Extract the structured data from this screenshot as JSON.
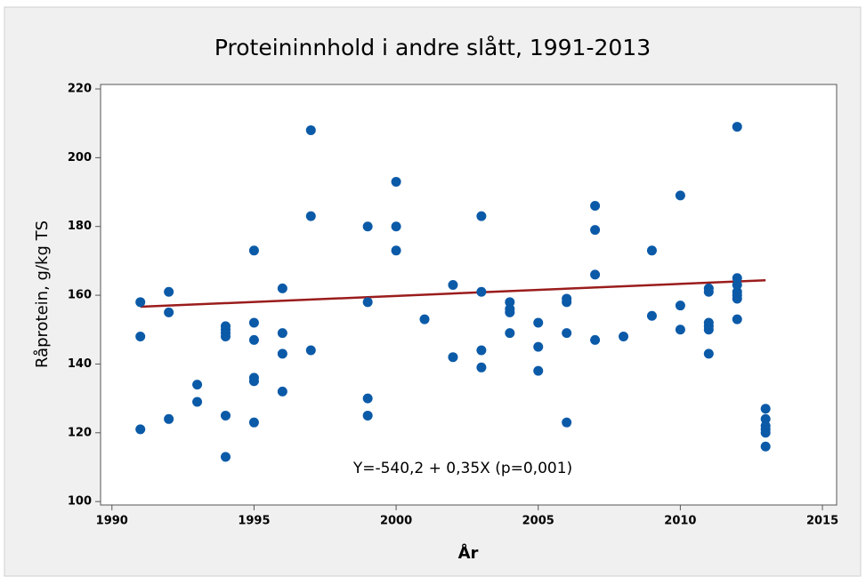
{
  "chart_data": {
    "type": "scatter",
    "title": "Proteininnhold i andre slått, 1991-2013",
    "x_label": "År",
    "y_label": "Råprotein, g/kg TS",
    "annotation": "Y=-540,2 + 0,35X (p=0,001)",
    "fit": {
      "intercept": -540.2,
      "slope": 0.35,
      "color": "#9b1c1c"
    },
    "series": [
      {
        "color": "#0b5aa8",
        "x": [
          1991,
          1991,
          1991,
          1992,
          1992,
          1992,
          1993,
          1993,
          1994,
          1994,
          1994,
          1994,
          1994,
          1994,
          1995,
          1995,
          1995,
          1995,
          1995,
          1995,
          1996,
          1996,
          1996,
          1996,
          1997,
          1997,
          1997,
          1999,
          1999,
          1999,
          1999,
          2000,
          2000,
          2000,
          2001,
          2002,
          2002,
          2003,
          2003,
          2003,
          2003,
          2004,
          2004,
          2004,
          2004,
          2005,
          2005,
          2005,
          2006,
          2006,
          2006,
          2006,
          2007,
          2007,
          2007,
          2007,
          2008,
          2009,
          2009,
          2010,
          2010,
          2010,
          2011,
          2011,
          2011,
          2011,
          2011,
          2011,
          2012,
          2012,
          2012,
          2012,
          2012,
          2012,
          2012,
          2013,
          2013,
          2013,
          2013,
          2013,
          2013
        ],
        "y": [
          158,
          148,
          121,
          161,
          155,
          124,
          134,
          129,
          151,
          150,
          149,
          148,
          125,
          113,
          173,
          152,
          147,
          136,
          135,
          123,
          162,
          149,
          143,
          132,
          208,
          183,
          144,
          180,
          158,
          130,
          125,
          193,
          180,
          173,
          153,
          163,
          142,
          183,
          161,
          144,
          139,
          158,
          156,
          155,
          149,
          152,
          145,
          138,
          159,
          158,
          149,
          123,
          186,
          179,
          166,
          147,
          148,
          173,
          154,
          189,
          157,
          150,
          162,
          161,
          152,
          151,
          150,
          143,
          209,
          165,
          163,
          161,
          160,
          159,
          153,
          127,
          124,
          122,
          121,
          120,
          116
        ]
      }
    ],
    "xlim": [
      1989.6,
      2015.5
    ],
    "ylim": [
      99,
      221.3
    ],
    "xticks": [
      1990,
      1995,
      2000,
      2005,
      2010,
      2015
    ],
    "yticks": [
      100,
      120,
      140,
      160,
      180,
      200,
      220
    ]
  }
}
